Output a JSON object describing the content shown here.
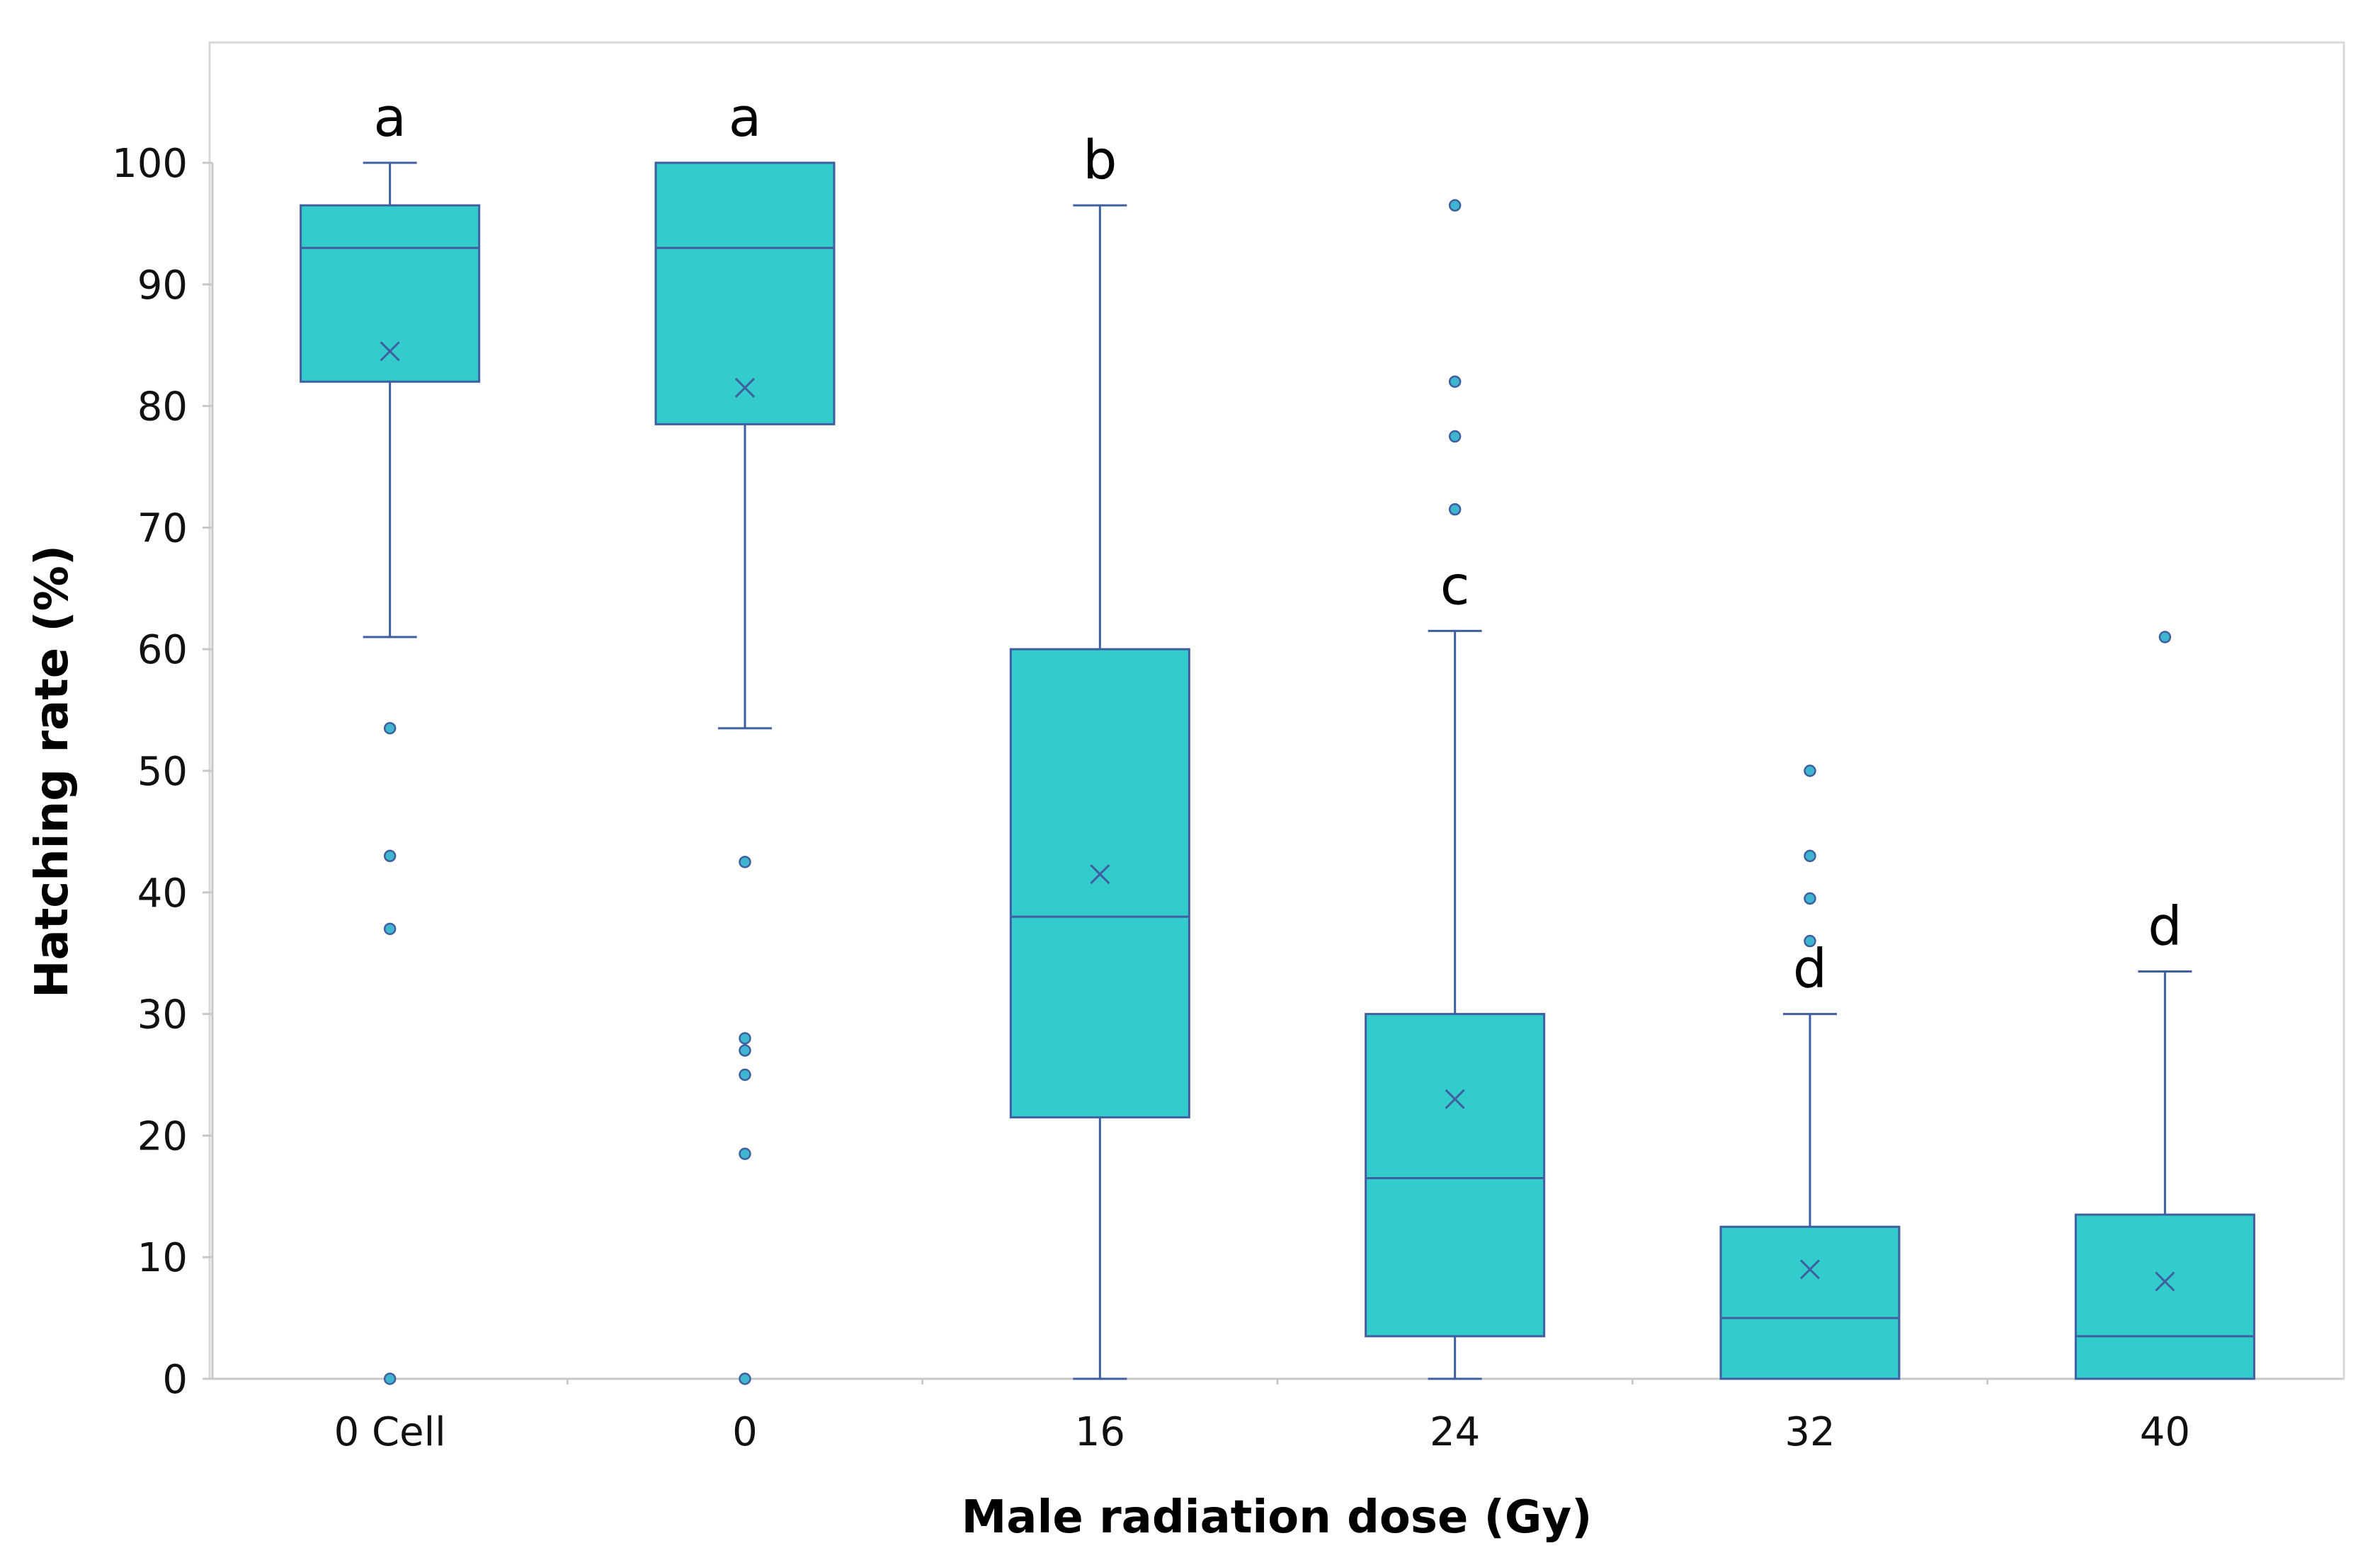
{
  "chart_data": {
    "type": "box",
    "xlabel": "Male radiation dose (Gy)",
    "ylabel": "Hatching rate  (%)",
    "ylim": [
      0,
      110
    ],
    "yticks": [
      0,
      10,
      20,
      30,
      40,
      50,
      60,
      70,
      80,
      90,
      100
    ],
    "grid": false,
    "colors": {
      "box_fill": "#33CCCC",
      "box_stroke": "#3F5FA0",
      "axis": "#C8C8C8",
      "frame": "#D9D9D9"
    },
    "categories": [
      "0 Cell",
      "0",
      "16",
      "24",
      "32",
      "40"
    ],
    "boxes": [
      {
        "category": "0 Cell",
        "min": 61,
        "q1": 82,
        "median": 93,
        "q3": 96.5,
        "max": 100,
        "mean": 84.5,
        "outliers": [
          53.5,
          43,
          37,
          0
        ],
        "letter": "a"
      },
      {
        "category": "0",
        "min": 53.5,
        "q1": 78.5,
        "median": 93,
        "q3": 100,
        "max": 100,
        "mean": 81.5,
        "outliers": [
          42.5,
          28,
          27,
          25,
          18.5,
          0
        ],
        "letter": "a"
      },
      {
        "category": "16",
        "min": 0,
        "q1": 21.5,
        "median": 38,
        "q3": 60,
        "max": 96.5,
        "mean": 41.5,
        "outliers": [],
        "letter": "b"
      },
      {
        "category": "24",
        "min": 0,
        "q1": 3.5,
        "median": 16.5,
        "q3": 30,
        "max": 61.5,
        "mean": 23,
        "outliers": [
          96.5,
          82,
          77.5,
          71.5
        ],
        "letter": "c"
      },
      {
        "category": "32",
        "min": 0,
        "q1": 0,
        "median": 5,
        "q3": 12.5,
        "max": 30,
        "mean": 9,
        "outliers": [
          50,
          43,
          39.5,
          36
        ],
        "letter": "d"
      },
      {
        "category": "40",
        "min": 0,
        "q1": 0,
        "median": 3.5,
        "q3": 13.5,
        "max": 33.5,
        "mean": 8,
        "outliers": [
          61
        ],
        "letter": "d"
      }
    ]
  }
}
